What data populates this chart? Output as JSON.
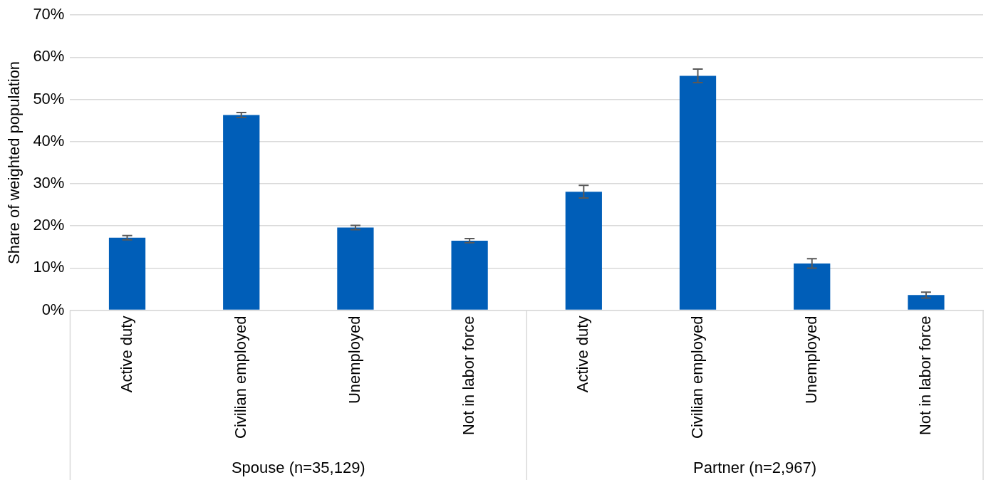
{
  "chart_data": {
    "type": "bar",
    "ylabel": "Share of weighted population",
    "categories": [
      "Active duty",
      "Civilian employed",
      "Unemployed",
      "Not in labor force",
      "Active duty",
      "Civilian employed",
      "Unemployed",
      "Not in labor force"
    ],
    "values": [
      17.2,
      46.3,
      19.6,
      16.5,
      28.1,
      55.6,
      11.1,
      3.6
    ],
    "errors": [
      0.5,
      0.6,
      0.5,
      0.5,
      1.5,
      1.6,
      1.1,
      0.7
    ],
    "color": "#005eb8",
    "ylim": [
      0,
      70
    ],
    "yticks": [
      {
        "value": 0,
        "label": "0%"
      },
      {
        "value": 10,
        "label": "10%"
      },
      {
        "value": 20,
        "label": "20%"
      },
      {
        "value": 30,
        "label": "30%"
      },
      {
        "value": 40,
        "label": "40%"
      },
      {
        "value": 50,
        "label": "50%"
      },
      {
        "value": 60,
        "label": "60%"
      },
      {
        "value": 70,
        "label": "70%"
      }
    ],
    "grid": "y",
    "legend": false,
    "annotations": [
      "Spouse (n=35,129)",
      "Partner (n=2,967)"
    ]
  }
}
